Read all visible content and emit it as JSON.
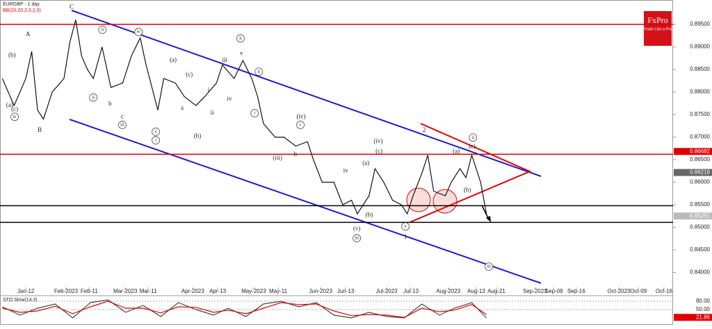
{
  "chart_data": [
    {
      "type": "line",
      "title": "EURGBP - 1 day",
      "subtitle": "BB(20,20,2,0,2,0)",
      "xlim": [
        -8.8,
        220.6
      ],
      "ylim": [
        0.837,
        0.9004
      ],
      "yticks": [
        {
          "value": 0.84,
          "label": "0.84000"
        },
        {
          "value": 0.845,
          "label": "0.84500"
        },
        {
          "value": 0.85,
          "label": "0.85000"
        },
        {
          "value": 0.855,
          "label": "0.85500"
        },
        {
          "value": 0.86,
          "label": "0.86000"
        },
        {
          "value": 0.865,
          "label": "0.86500"
        },
        {
          "value": 0.87,
          "label": "0.87000"
        },
        {
          "value": 0.875,
          "label": "0.87500"
        },
        {
          "value": 0.88,
          "label": "0.88000"
        },
        {
          "value": 0.885,
          "label": "0.88500"
        },
        {
          "value": 0.89,
          "label": "0.89000"
        },
        {
          "value": 0.895,
          "label": "0.89500"
        }
      ],
      "xticks": [
        {
          "value": 0,
          "label": "Jan-12"
        },
        {
          "value": 13.7,
          "label": "Feb-2023"
        },
        {
          "value": 21.6,
          "label": "Feb-11"
        },
        {
          "value": 33.9,
          "label": "Mar-2023"
        },
        {
          "value": 41.7,
          "label": "Mar-11"
        },
        {
          "value": 56.9,
          "label": "Apr-2023"
        },
        {
          "value": 65.4,
          "label": "Apr-13"
        },
        {
          "value": 77.7,
          "label": "May-2023"
        },
        {
          "value": 86,
          "label": "May-11"
        },
        {
          "value": 100.5,
          "label": "Jun-2023"
        },
        {
          "value": 109,
          "label": "Jun-13"
        },
        {
          "value": 123,
          "label": "Jul-2023"
        },
        {
          "value": 131.3,
          "label": "Jul-13"
        },
        {
          "value": 144,
          "label": "Aug-2023"
        },
        {
          "value": 153.5,
          "label": "Aug-13"
        },
        {
          "value": 160.4,
          "label": "Aug-21"
        },
        {
          "value": 173.5,
          "label": "Sep-2023"
        },
        {
          "value": 180,
          "label": "Sep-09"
        },
        {
          "value": 187.6,
          "label": "Sep-16"
        },
        {
          "value": 202.1,
          "label": "Oct-2023"
        },
        {
          "value": 208.8,
          "label": "Oct-09"
        },
        {
          "value": 217.5,
          "label": "Oct-16"
        }
      ],
      "series": [
        {
          "color": "#111111",
          "x": [
            -8,
            -4,
            0,
            2,
            4,
            6,
            9,
            13,
            15,
            17,
            19,
            21,
            23,
            26,
            29,
            33,
            36,
            39,
            41,
            45,
            47,
            51,
            54,
            58,
            61,
            65,
            67,
            71,
            74,
            77,
            79,
            81,
            85,
            88,
            92,
            96,
            98,
            101,
            105,
            108,
            111,
            113,
            117,
            119,
            122,
            125,
            128,
            130,
            132,
            135,
            137,
            139,
            143,
            145,
            148,
            150,
            152,
            155,
            157
          ],
          "values": [
            0.883,
            0.877,
            0.883,
            0.889,
            0.876,
            0.874,
            0.88,
            0.883,
            0.891,
            0.896,
            0.888,
            0.885,
            0.883,
            0.89,
            0.881,
            0.882,
            0.888,
            0.892,
            0.886,
            0.876,
            0.883,
            0.882,
            0.879,
            0.877,
            0.879,
            0.882,
            0.886,
            0.883,
            0.887,
            0.883,
            0.879,
            0.873,
            0.87,
            0.87,
            0.868,
            0.869,
            0.865,
            0.86,
            0.86,
            0.855,
            0.856,
            0.853,
            0.857,
            0.863,
            0.86,
            0.856,
            0.855,
            0.853,
            0.857,
            0.862,
            0.866,
            0.858,
            0.857,
            0.86,
            0.863,
            0.861,
            0.866,
            0.86,
            0.853
          ]
        }
      ],
      "hlines": [
        {
          "value": 0.895,
          "color": "#e00000"
        },
        {
          "value": 0.8662,
          "color": "#e00000"
        },
        {
          "value": 0.8548,
          "color": "#000000"
        },
        {
          "value": 0.8511,
          "color": "#000000"
        }
      ],
      "price_markers": [
        {
          "value": 0.86682,
          "label": "0.86682",
          "color": "#e00000"
        },
        {
          "value": 0.86216,
          "label": "0.86216",
          "color": "#666666"
        },
        {
          "value": 0.85251,
          "label": "0.85251",
          "color": "#bbbbbb"
        }
      ],
      "annotations": [
        {
          "text": "C",
          "x": 15.6,
          "y": 0.8988
        },
        {
          "text": "A",
          "x": 0.7,
          "y": 0.8927
        },
        {
          "text": "B",
          "x": 4.7,
          "y": 0.8715
        },
        {
          "text": "(b)",
          "x": -4.7,
          "y": 0.8881
        },
        {
          "text": "(a)",
          "x": -5.5,
          "y": 0.877
        },
        {
          "text": "(c)",
          "x": -3.8,
          "y": 0.8761
        },
        {
          "text": "iv",
          "x": -3.8,
          "y": 0.8745,
          "circled": true
        },
        {
          "text": "ii",
          "x": 26.1,
          "y": 0.8938,
          "circled": true
        },
        {
          "text": "ii",
          "x": 23,
          "y": 0.8788,
          "circled": true
        },
        {
          "text": "iv",
          "x": 38.4,
          "y": 0.8933,
          "circled": true
        },
        {
          "text": "iii",
          "x": 32.9,
          "y": 0.8727,
          "circled": true
        },
        {
          "text": "v",
          "x": 44.3,
          "y": 0.8712,
          "circled": true
        },
        {
          "text": "i",
          "x": 44.3,
          "y": 0.8693,
          "circled": true
        },
        {
          "text": "(a)",
          "x": 50.2,
          "y": 0.887
        },
        {
          "text": "(c)",
          "x": 55.7,
          "y": 0.8838
        },
        {
          "text": "(b)",
          "x": 58.5,
          "y": 0.8702
        },
        {
          "text": "b",
          "x": 28.7,
          "y": 0.8773
        },
        {
          "text": "c",
          "x": 32.9,
          "y": 0.8745
        },
        {
          "text": "a",
          "x": 53.3,
          "y": 0.8764
        },
        {
          "text": "i",
          "x": 62.3,
          "y": 0.8804
        },
        {
          "text": "ii",
          "x": 63.5,
          "y": 0.8753
        },
        {
          "text": "iii",
          "x": 67.8,
          "y": 0.887
        },
        {
          "text": "iv",
          "x": 69.4,
          "y": 0.8784
        },
        {
          "text": "v",
          "x": 73.5,
          "y": 0.8885
        },
        {
          "text": "ii",
          "x": 73.2,
          "y": 0.8919,
          "circled": true
        },
        {
          "text": "ii",
          "x": 79.4,
          "y": 0.8845,
          "circled": true
        },
        {
          "text": "i",
          "x": 78,
          "y": 0.8753,
          "circled": true
        },
        {
          "text": "(iv)",
          "x": 93.8,
          "y": 0.8745
        },
        {
          "text": "c",
          "x": 93.6,
          "y": 0.8727,
          "circled": true
        },
        {
          "text": "(iii)",
          "x": 85.8,
          "y": 0.8653
        },
        {
          "text": "b",
          "x": 91.9,
          "y": 0.8661
        },
        {
          "text": "(v)",
          "x": 112.8,
          "y": 0.8496
        },
        {
          "text": "iii",
          "x": 112.8,
          "y": 0.8476,
          "circled": true
        },
        {
          "text": "(b)",
          "x": 117,
          "y": 0.8527
        },
        {
          "text": "(a)",
          "x": 115.9,
          "y": 0.8642
        },
        {
          "text": "iv",
          "x": 109,
          "y": 0.8625
        },
        {
          "text": "(iv)",
          "x": 120.1,
          "y": 0.869
        },
        {
          "text": "(c)",
          "x": 120.4,
          "y": 0.8668
        },
        {
          "text": "v",
          "x": 129.4,
          "y": 0.8502,
          "circled": true
        },
        {
          "text": "1",
          "x": 129.4,
          "y": 0.8478
        },
        {
          "text": "2",
          "x": 135.8,
          "y": 0.8715
        },
        {
          "text": "(a)",
          "x": 146.7,
          "y": 0.8668
        },
        {
          "text": "(b)",
          "x": 150.5,
          "y": 0.8582
        },
        {
          "text": "(c)",
          "x": 152.1,
          "y": 0.8679
        },
        {
          "text": "ii",
          "x": 152.4,
          "y": 0.8699,
          "circled": true
        },
        {
          "text": "iii",
          "x": 157.8,
          "y": 0.8413,
          "circled": true
        }
      ]
    },
    {
      "type": "line",
      "title": "STO Slow(14,3)",
      "ylim": [
        0,
        100
      ],
      "yticks": [
        {
          "value": 80,
          "label": "80.00"
        },
        {
          "value": 50,
          "label": "50.00"
        }
      ],
      "marker": {
        "value": 21.86,
        "label": "21.86",
        "color": "#e00000"
      },
      "series": [
        {
          "color": "#444444",
          "x": [
            -8,
            -2,
            4,
            10,
            16,
            22,
            28,
            34,
            40,
            46,
            52,
            58,
            64,
            69,
            75,
            81,
            87,
            93,
            99,
            105,
            111,
            117,
            123,
            129,
            135,
            141,
            146,
            152,
            157
          ],
          "values": [
            60,
            30,
            55,
            70,
            20,
            75,
            85,
            40,
            65,
            25,
            75,
            50,
            30,
            55,
            25,
            70,
            80,
            60,
            75,
            30,
            20,
            40,
            25,
            20,
            70,
            30,
            55,
            75,
            20
          ]
        },
        {
          "color": "#e00000",
          "x": [
            -8,
            -2,
            4,
            10,
            16,
            22,
            28,
            34,
            40,
            46,
            52,
            58,
            64,
            69,
            75,
            81,
            87,
            93,
            99,
            105,
            111,
            117,
            123,
            129,
            135,
            141,
            146,
            152,
            157
          ],
          "values": [
            55,
            40,
            45,
            62,
            35,
            60,
            80,
            55,
            55,
            38,
            60,
            58,
            40,
            48,
            35,
            55,
            75,
            68,
            70,
            45,
            28,
            32,
            30,
            22,
            55,
            42,
            48,
            68,
            32
          ]
        }
      ]
    }
  ],
  "logo": {
    "name": "FxPro",
    "tagline": "Trade Like a Pro"
  }
}
